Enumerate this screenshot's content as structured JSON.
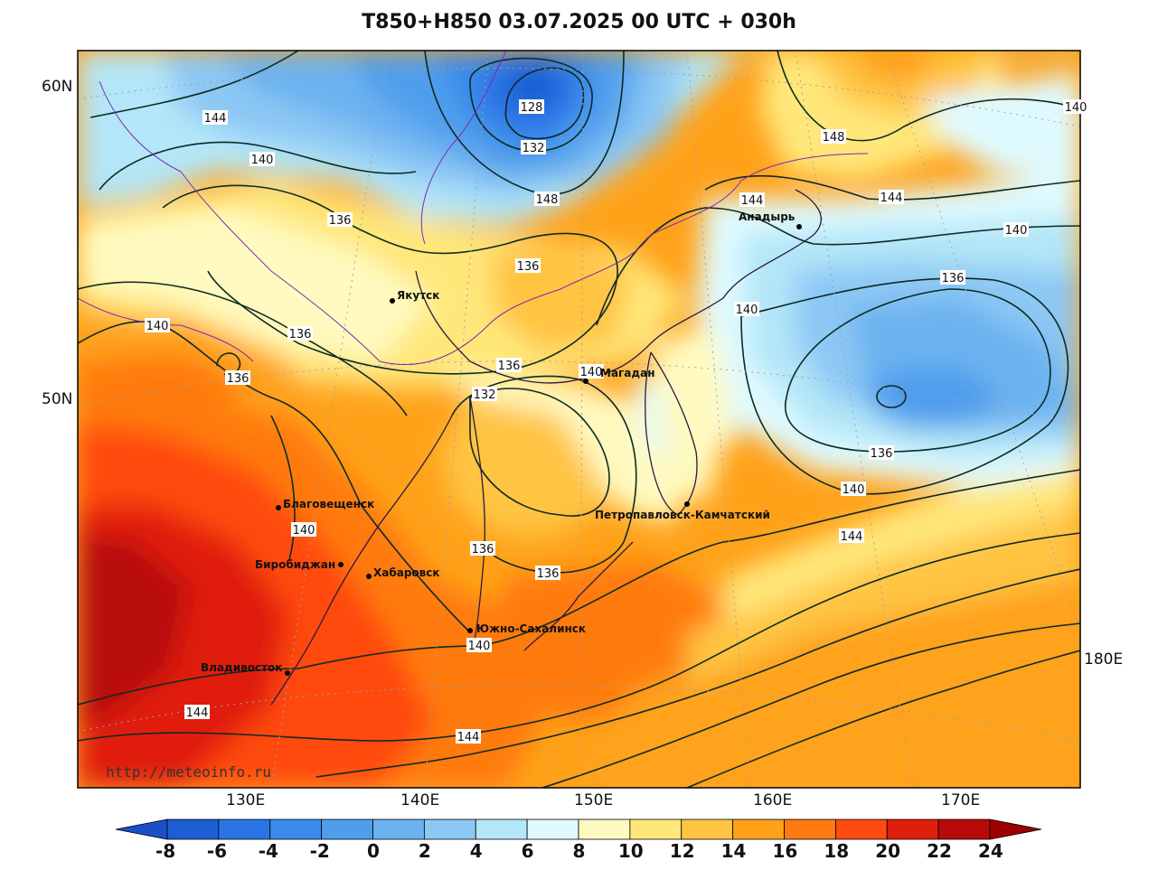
{
  "title": "T850+H850 03.07.2025 00 UTC + 030h",
  "credit": "http://meteoinfo.ru",
  "lat_labels": [
    "60N",
    "50N"
  ],
  "lon_labels": [
    "130E",
    "140E",
    "150E",
    "160E",
    "170E",
    "180E"
  ],
  "colorbar": {
    "ticks": [
      "-8",
      "-6",
      "-4",
      "-2",
      "0",
      "2",
      "4",
      "6",
      "8",
      "10",
      "12",
      "14",
      "16",
      "18",
      "20",
      "22",
      "24"
    ],
    "colors": [
      "#1c5fd4",
      "#2a75e6",
      "#3a8bea",
      "#4f9eec",
      "#6cb2f0",
      "#8cc8f4",
      "#b3e6f8",
      "#dffaff",
      "#fffac0",
      "#ffe77a",
      "#ffc443",
      "#ffa21a",
      "#ff7a10",
      "#ff4a10",
      "#e01e0e",
      "#b80a08"
    ],
    "under_color": "#1a4fc8",
    "over_color": "#9c0000"
  },
  "contour_labels": [
    "128",
    "132",
    "136",
    "140",
    "144",
    "148",
    "136",
    "136",
    "132",
    "136",
    "140",
    "144",
    "140",
    "136",
    "136",
    "140",
    "140",
    "140",
    "136",
    "136",
    "140",
    "144",
    "144",
    "144",
    "136",
    "136",
    "140",
    "144",
    "148",
    "140",
    "140"
  ],
  "cities": [
    "Якутск",
    "Магадан",
    "Анадырь",
    "Благовещенск",
    "Биробиджан",
    "Хабаровск",
    "Петропавловск-Камчатский",
    "Южно-Сахалинск",
    "Владивосток"
  ]
}
